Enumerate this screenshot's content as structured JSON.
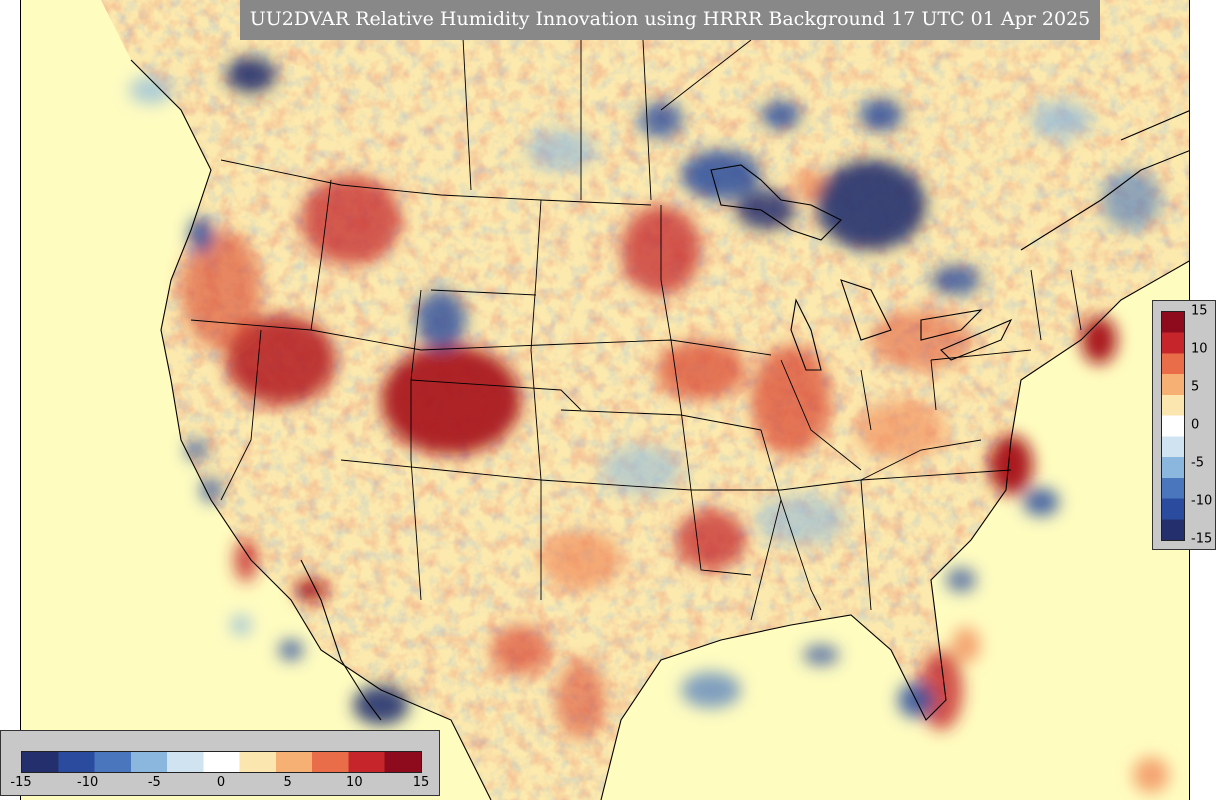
{
  "title": "UU2DVAR Relative Humidity Innovation using HRRR Background 17 UTC 01 Apr 2025",
  "colors": {
    "ocean": "#fffcc0",
    "neutral": "#ffffff",
    "strong_negative": "#1f2f8f",
    "strong_positive": "#a50f15",
    "panel": "#c8c8c8",
    "title_bg": "#888888"
  },
  "colorbar": {
    "min": -15,
    "max": 15,
    "stops": [
      "#24306e",
      "#2b4c9e",
      "#4a76bd",
      "#8bb6dd",
      "#cfe3f0",
      "#ffffff",
      "#fbe6b0",
      "#f7b073",
      "#ea6d4a",
      "#c6262b",
      "#8e0b1e"
    ],
    "vertical_ticks": [
      "15",
      "10",
      "5",
      "0",
      "-5",
      "-10",
      "-15"
    ],
    "horizontal_ticks": [
      "-15",
      "-10",
      "-5",
      "0",
      "5",
      "10",
      "15"
    ]
  },
  "map": {
    "projection": "lambert-conformal",
    "region": "CONUS",
    "features": [
      "coastlines",
      "country-borders",
      "state-borders"
    ]
  }
}
